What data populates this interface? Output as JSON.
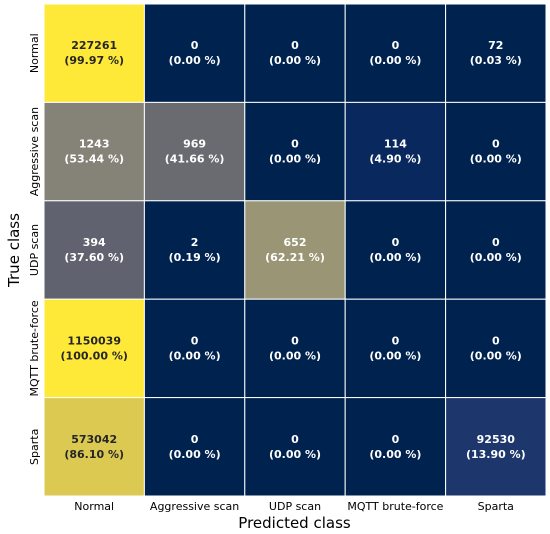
{
  "chart_data": {
    "type": "heatmap",
    "xlabel": "Predicted class",
    "ylabel": "True class",
    "x_categories": [
      "Normal",
      "Aggressive scan",
      "UDP scan",
      "MQTT brute-force",
      "Sparta"
    ],
    "y_categories": [
      "Normal",
      "Aggressive scan",
      "UDP scan",
      "MQTT brute-force",
      "Sparta"
    ],
    "colormap": "cividis",
    "color_scale_basis": "row percentage",
    "color_range": [
      0,
      100
    ],
    "counts": [
      [
        227261,
        0,
        0,
        0,
        72
      ],
      [
        1243,
        969,
        0,
        114,
        0
      ],
      [
        394,
        2,
        652,
        0,
        0
      ],
      [
        1150039,
        0,
        0,
        0,
        0
      ],
      [
        573042,
        0,
        0,
        0,
        92530
      ]
    ],
    "percentages": [
      [
        99.97,
        0.0,
        0.0,
        0.0,
        0.03
      ],
      [
        53.44,
        41.66,
        0.0,
        4.9,
        0.0
      ],
      [
        37.6,
        0.19,
        62.21,
        0.0,
        0.0
      ],
      [
        100.0,
        0.0,
        0.0,
        0.0,
        0.0
      ],
      [
        86.1,
        0.0,
        0.0,
        0.0,
        13.9
      ]
    ],
    "cell_labels": [
      [
        [
          "227261",
          "(99.97 %)"
        ],
        [
          "0",
          "(0.00 %)"
        ],
        [
          "0",
          "(0.00 %)"
        ],
        [
          "0",
          "(0.00 %)"
        ],
        [
          "72",
          "(0.03 %)"
        ]
      ],
      [
        [
          "1243",
          "(53.44 %)"
        ],
        [
          "969",
          "(41.66 %)"
        ],
        [
          "0",
          "(0.00 %)"
        ],
        [
          "114",
          "(4.90 %)"
        ],
        [
          "0",
          "(0.00 %)"
        ]
      ],
      [
        [
          "394",
          "(37.60 %)"
        ],
        [
          "2",
          "(0.19 %)"
        ],
        [
          "652",
          "(62.21 %)"
        ],
        [
          "0",
          "(0.00 %)"
        ],
        [
          "0",
          "(0.00 %)"
        ]
      ],
      [
        [
          "1150039",
          "(100.00 %)"
        ],
        [
          "0",
          "(0.00 %)"
        ],
        [
          "0",
          "(0.00 %)"
        ],
        [
          "0",
          "(0.00 %)"
        ],
        [
          "0",
          "(0.00 %)"
        ]
      ],
      [
        [
          "573042",
          "(86.10 %)"
        ],
        [
          "0",
          "(0.00 %)"
        ],
        [
          "0",
          "(0.00 %)"
        ],
        [
          "0",
          "(0.00 %)"
        ],
        [
          "92530",
          "(13.90 %)"
        ]
      ]
    ],
    "legend": "none",
    "grid": false
  }
}
